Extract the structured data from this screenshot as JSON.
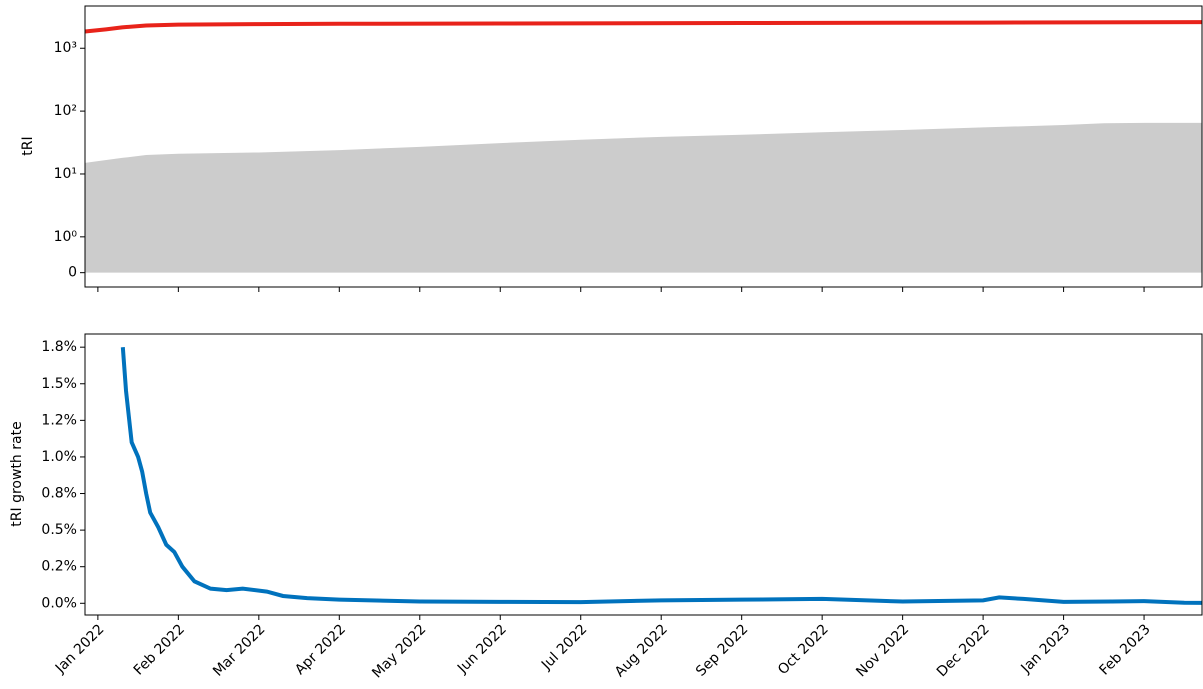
{
  "chart_data": [
    {
      "type": "area-line",
      "ylabel": "tRI",
      "yscale": "symlog",
      "linthresh": 1,
      "xlim": [
        -0.16,
        13.72
      ],
      "xticks": [
        {
          "value": 0,
          "label": "Jan 2022"
        },
        {
          "value": 1,
          "label": "Feb 2022"
        },
        {
          "value": 2,
          "label": "Mar 2022"
        },
        {
          "value": 3,
          "label": "Apr 2022"
        },
        {
          "value": 4,
          "label": "May 2022"
        },
        {
          "value": 5,
          "label": "Jun 2022"
        },
        {
          "value": 6,
          "label": "Jul 2022"
        },
        {
          "value": 7,
          "label": "Aug 2022"
        },
        {
          "value": 8,
          "label": "Sep 2022"
        },
        {
          "value": 9,
          "label": "Oct 2022"
        },
        {
          "value": 10,
          "label": "Nov 2022"
        },
        {
          "value": 11,
          "label": "Dec 2022"
        },
        {
          "value": 12,
          "label": "Jan 2023"
        },
        {
          "value": 13,
          "label": "Feb 2023"
        }
      ],
      "ylim": [
        -0.4,
        4700
      ],
      "yticks": [
        0,
        {
          "value": 1,
          "label": "10⁰"
        },
        {
          "value": 10,
          "label": "10¹"
        },
        {
          "value": 100,
          "label": "10²"
        },
        {
          "value": 1000,
          "label": "10³"
        }
      ],
      "series": [
        {
          "kind": "area",
          "color": "#cccccc",
          "x": [
            -0.16,
            0.3,
            0.6,
            1,
            2,
            3,
            4,
            5,
            6,
            7,
            8,
            9,
            10,
            11,
            12,
            12.5,
            13,
            13.72
          ],
          "values": [
            15,
            18,
            20,
            21,
            22,
            24,
            27,
            31,
            35,
            39,
            42,
            46,
            50,
            55,
            60,
            64,
            65,
            65
          ]
        },
        {
          "kind": "line",
          "color": "#e8231a",
          "x": [
            -0.16,
            0.1,
            0.3,
            0.6,
            1,
            2,
            3,
            5,
            8,
            11,
            13.72
          ],
          "values": [
            1850,
            2000,
            2150,
            2300,
            2380,
            2420,
            2450,
            2480,
            2520,
            2560,
            2600
          ]
        }
      ]
    },
    {
      "type": "line",
      "ylabel": "tRI growth rate",
      "xlim": [
        -0.16,
        13.72
      ],
      "xticks": [
        {
          "value": 0,
          "label": "Jan 2022"
        },
        {
          "value": 1,
          "label": "Feb 2022"
        },
        {
          "value": 2,
          "label": "Mar 2022"
        },
        {
          "value": 3,
          "label": "Apr 2022"
        },
        {
          "value": 4,
          "label": "May 2022"
        },
        {
          "value": 5,
          "label": "Jun 2022"
        },
        {
          "value": 6,
          "label": "Jul 2022"
        },
        {
          "value": 7,
          "label": "Aug 2022"
        },
        {
          "value": 8,
          "label": "Sep 2022"
        },
        {
          "value": 9,
          "label": "Oct 2022"
        },
        {
          "value": 10,
          "label": "Nov 2022"
        },
        {
          "value": 11,
          "label": "Dec 2022"
        },
        {
          "value": 12,
          "label": "Jan 2023"
        },
        {
          "value": 13,
          "label": "Feb 2023"
        }
      ],
      "ylim": [
        -0.08,
        1.84
      ],
      "yticks": [
        {
          "value": 0,
          "label": "0.0%"
        },
        {
          "value": 0.25,
          "label": "0.2%"
        },
        {
          "value": 0.5,
          "label": "0.5%"
        },
        {
          "value": 0.75,
          "label": "0.8%"
        },
        {
          "value": 1,
          "label": "1.0%"
        },
        {
          "value": 1.25,
          "label": "1.2%"
        },
        {
          "value": 1.5,
          "label": "1.5%"
        },
        {
          "value": 1.75,
          "label": "1.8%"
        }
      ],
      "series": [
        {
          "color": "#0072bd",
          "x": [
            0.31,
            0.35,
            0.42,
            0.5,
            0.55,
            0.6,
            0.65,
            0.75,
            0.85,
            0.95,
            1.05,
            1.2,
            1.4,
            1.6,
            1.8,
            2.1,
            2.3,
            2.6,
            3,
            4,
            5,
            6,
            7,
            8,
            9,
            10,
            11,
            11.2,
            11.5,
            12,
            12.6,
            13,
            13.5,
            13.72
          ],
          "values": [
            1.75,
            1.45,
            1.1,
            1.0,
            0.9,
            0.75,
            0.62,
            0.52,
            0.4,
            0.35,
            0.25,
            0.15,
            0.1,
            0.09,
            0.1,
            0.08,
            0.05,
            0.035,
            0.025,
            0.012,
            0.01,
            0.008,
            0.02,
            0.025,
            0.03,
            0.012,
            0.02,
            0.04,
            0.03,
            0.01,
            0.012,
            0.015,
            0.004,
            0.003
          ]
        }
      ]
    }
  ]
}
